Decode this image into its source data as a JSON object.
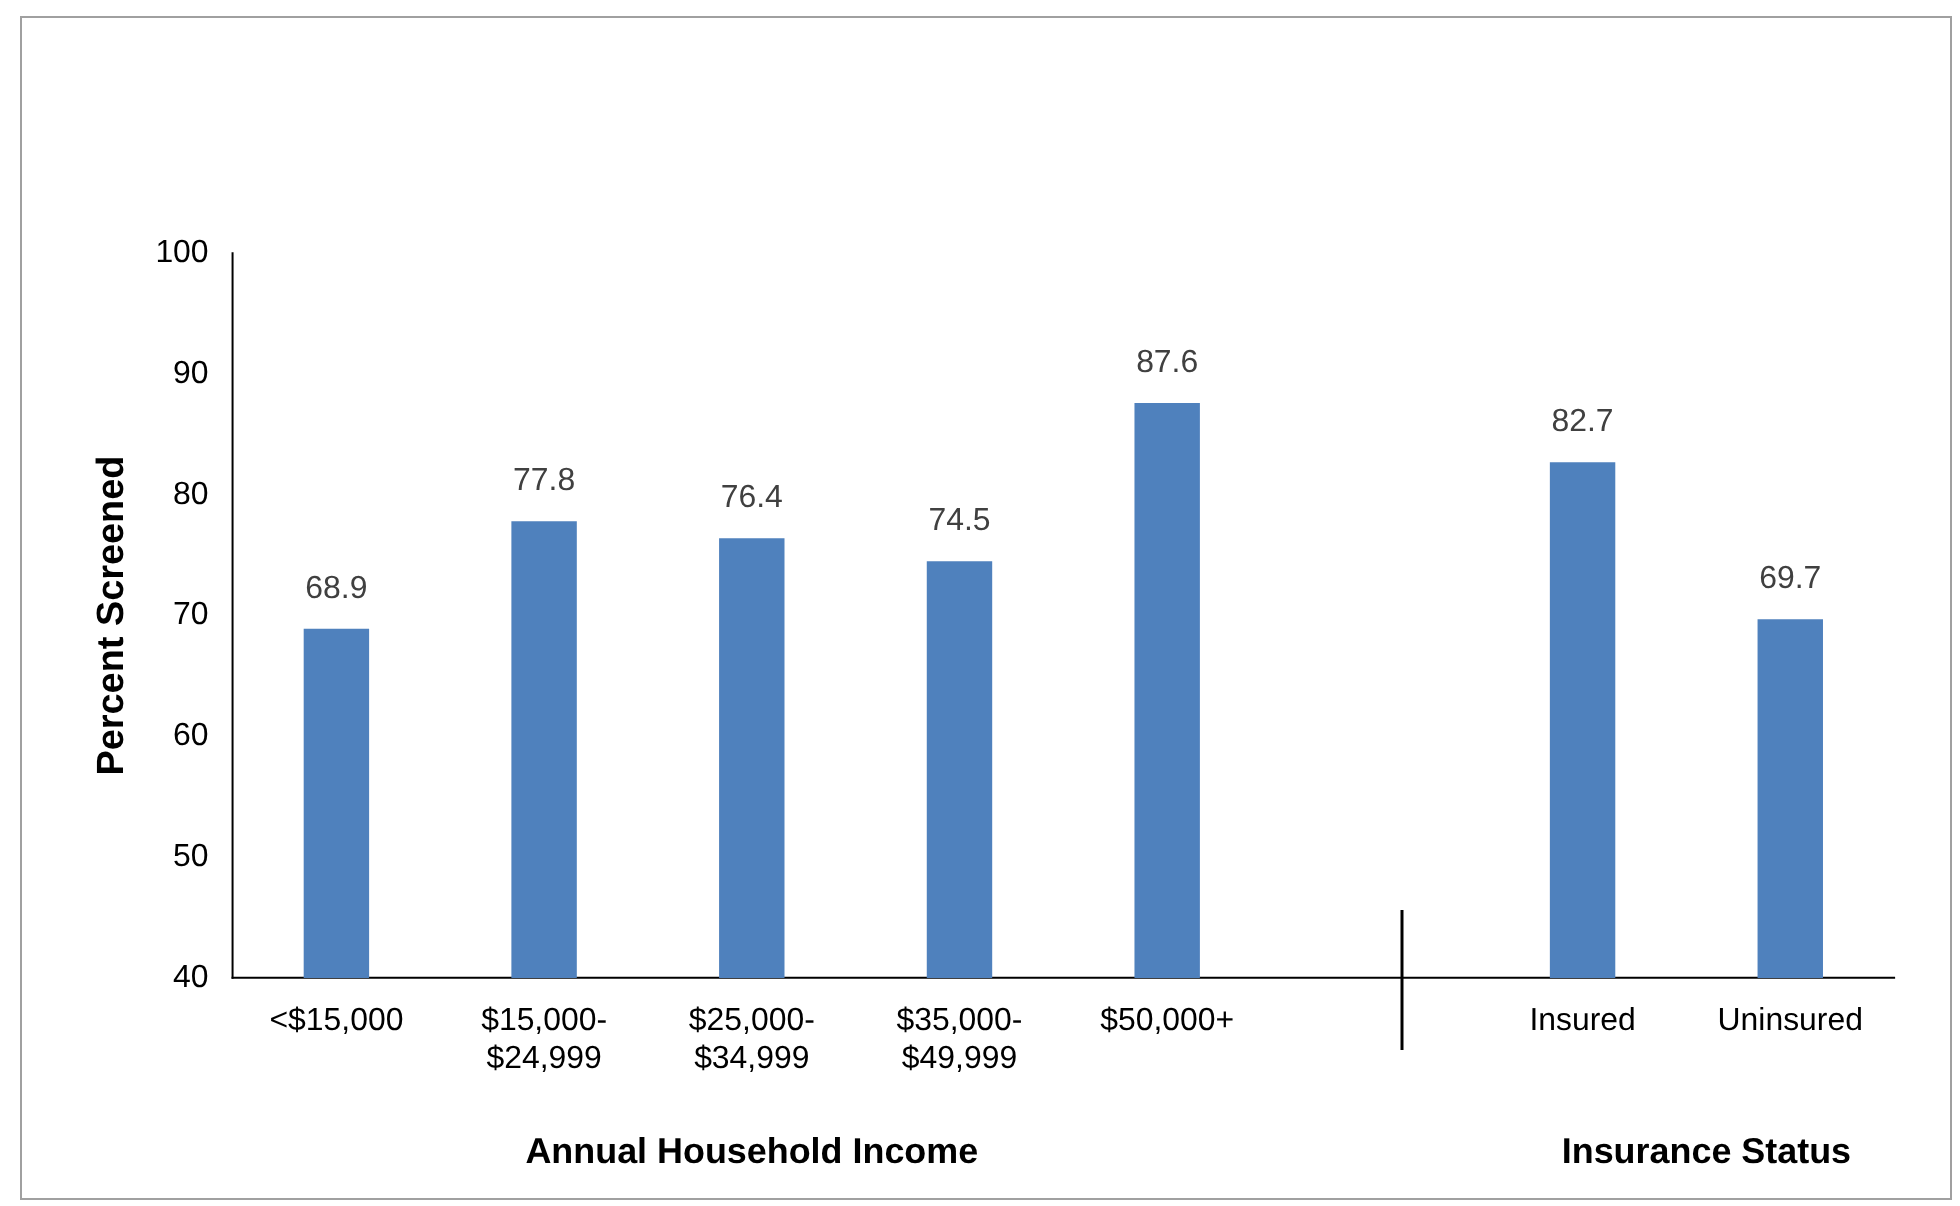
{
  "chart_data": {
    "type": "bar",
    "ylabel": "Percent Screened",
    "xlabel": "Annual Household Income",
    "annotations": [
      "Insurance Status"
    ],
    "categories": [
      "<$15,000",
      "$15,000-$24,999",
      "$25,000-$34,999",
      "$35,000-$49,999",
      "$50,000+",
      null,
      "Insured",
      "Uninsured"
    ],
    "values": [
      68.9,
      77.8,
      76.4,
      74.5,
      87.6,
      null,
      82.7,
      69.7
    ],
    "color": "#4f81bd",
    "ylim": [
      40,
      100
    ],
    "yticks": [
      40,
      50,
      60,
      70,
      80,
      90,
      100
    ],
    "grid": false,
    "legend": false,
    "data_labels": true
  }
}
